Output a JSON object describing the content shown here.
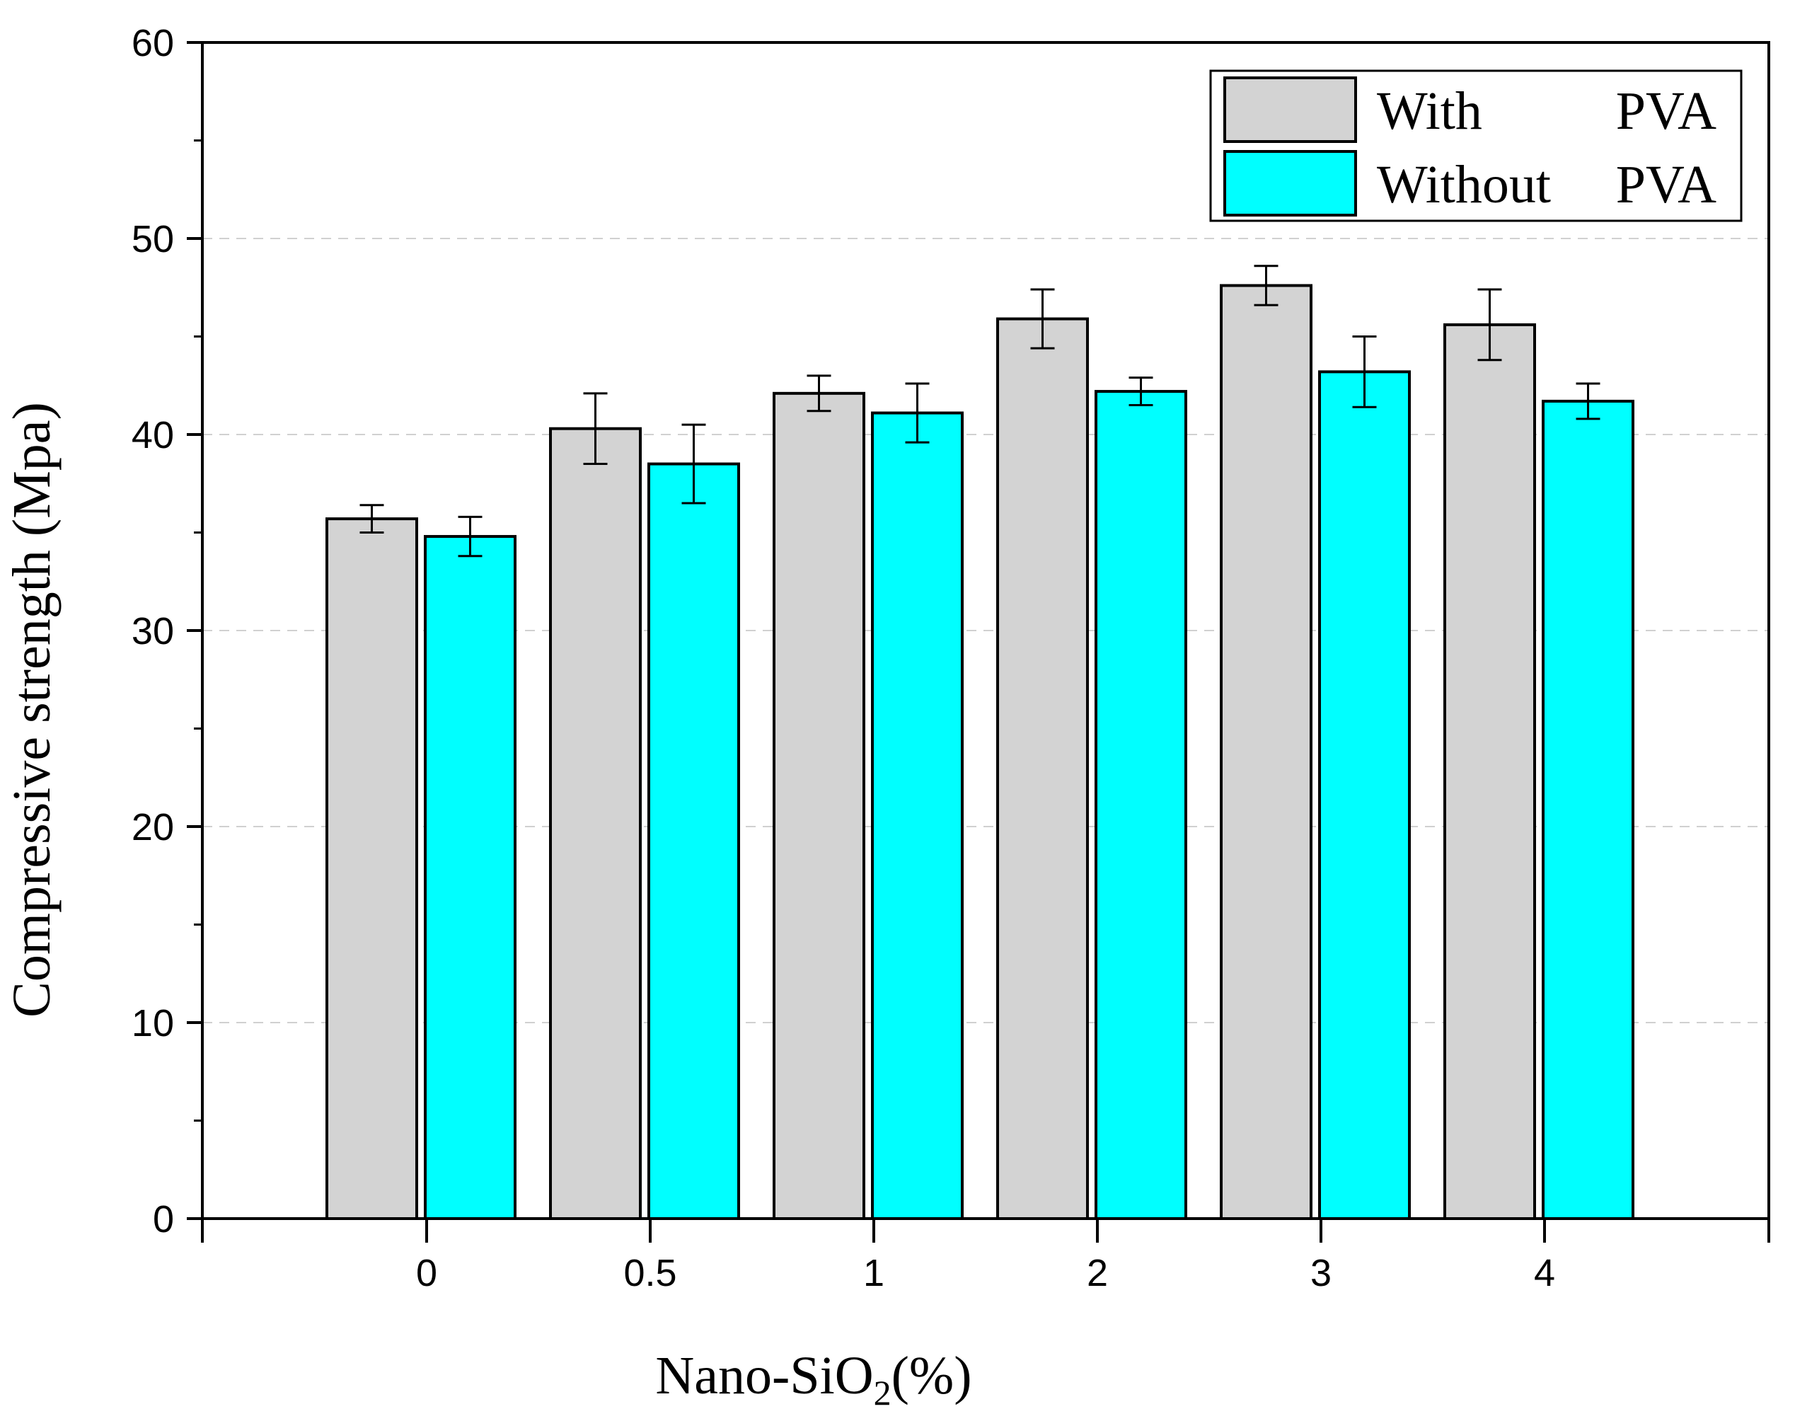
{
  "chart_data": {
    "type": "bar",
    "categories": [
      "0",
      "0.5",
      "1",
      "2",
      "3",
      "4"
    ],
    "series": [
      {
        "name": "With PVA",
        "legend_parts": [
          "With",
          "PVA"
        ],
        "color": "#d3d3d3",
        "values": [
          35.7,
          40.3,
          42.1,
          45.9,
          47.6,
          45.6
        ],
        "errors": [
          0.7,
          1.8,
          0.9,
          1.5,
          1.0,
          1.8
        ]
      },
      {
        "name": "Without PVA",
        "legend_parts": [
          "Without",
          "PVA"
        ],
        "color": "#00ffff",
        "values": [
          34.8,
          38.5,
          41.1,
          42.2,
          43.2,
          41.7
        ],
        "errors": [
          1.0,
          2.0,
          1.5,
          0.7,
          1.8,
          0.9
        ]
      }
    ],
    "title": "",
    "xlabel": {
      "main": "Nano-SiO",
      "subscript": "2",
      "suffix": "(%)"
    },
    "ylabel": "Compressive strength (Mpa)",
    "ylim": [
      0,
      60
    ],
    "yticks": [
      "0",
      "10",
      "20",
      "30",
      "40",
      "50",
      "60"
    ],
    "grid": "horizontal-dashed",
    "legend_position": "top-right"
  }
}
